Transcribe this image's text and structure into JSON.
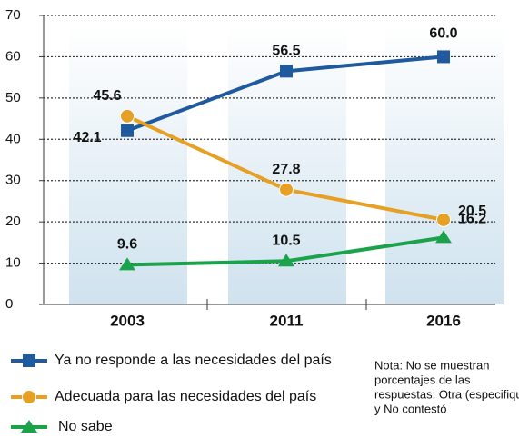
{
  "chart_data": {
    "type": "line",
    "categories": [
      "2003",
      "2011",
      "2016"
    ],
    "series": [
      {
        "name": "Ya no responde a las necesidades del país",
        "color": "#1f5a9e",
        "marker": "square",
        "values": [
          42.1,
          56.5,
          60.0
        ],
        "value_labels": [
          "42.1",
          "56.5",
          "60.0"
        ]
      },
      {
        "name": "Adecuada para las necesidades del país",
        "color": "#e6a023",
        "marker": "circle",
        "values": [
          45.6,
          27.8,
          20.5
        ]
      },
      {
        "name": "No sabe",
        "color": "#1aa34a",
        "marker": "triangle",
        "values": [
          9.6,
          10.5,
          16.2
        ]
      }
    ],
    "ylim": [
      0,
      70
    ],
    "yticks": [
      0,
      10,
      20,
      30,
      40,
      50,
      60,
      70
    ],
    "grid": true,
    "note": [
      "Nota: No se muestran",
      "porcentajes de las",
      "respuestas: Otra (especifique)",
      "y No contestó"
    ]
  }
}
